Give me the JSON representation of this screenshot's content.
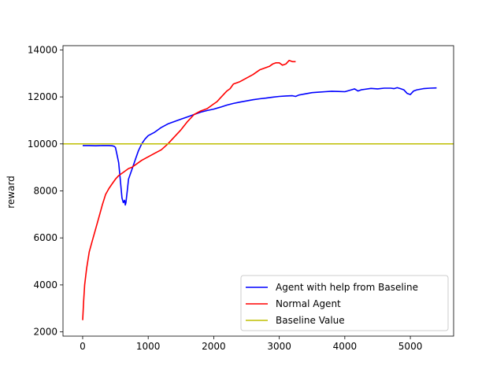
{
  "chart_data": {
    "type": "line",
    "title": "",
    "xlabel": "",
    "ylabel": "reward",
    "xlim": [
      -300,
      5660
    ],
    "ylim": [
      1820,
      14180
    ],
    "x_ticks": [
      0,
      1000,
      2000,
      3000,
      4000,
      5000
    ],
    "y_ticks": [
      2000,
      4000,
      6000,
      8000,
      10000,
      12000,
      14000
    ],
    "grid": false,
    "legend_position": "lower-right",
    "series": [
      {
        "name": "Agent with help from Baseline",
        "color": "#0000ff",
        "x": [
          0,
          100,
          200,
          300,
          400,
          450,
          480,
          500,
          520,
          550,
          570,
          600,
          620,
          640,
          650,
          660,
          680,
          700,
          750,
          800,
          850,
          900,
          950,
          1000,
          1100,
          1200,
          1300,
          1400,
          1500,
          1600,
          1700,
          1800,
          1900,
          2000,
          2100,
          2200,
          2300,
          2400,
          2500,
          2600,
          2700,
          2800,
          2900,
          3000,
          3100,
          3200,
          3250,
          3300,
          3400,
          3500,
          3600,
          3700,
          3800,
          3900,
          4000,
          4100,
          4150,
          4200,
          4250,
          4300,
          4400,
          4500,
          4600,
          4700,
          4750,
          4800,
          4850,
          4900,
          4950,
          5000,
          5050,
          5100,
          5200,
          5300,
          5400
        ],
        "values": [
          9930,
          9930,
          9920,
          9930,
          9930,
          9920,
          9900,
          9850,
          9600,
          9200,
          8600,
          7700,
          7500,
          7600,
          7400,
          7500,
          8000,
          8500,
          8900,
          9300,
          9700,
          10000,
          10200,
          10350,
          10500,
          10700,
          10850,
          10950,
          11050,
          11150,
          11250,
          11350,
          11420,
          11480,
          11560,
          11650,
          11720,
          11780,
          11830,
          11880,
          11920,
          11950,
          11990,
          12020,
          12040,
          12050,
          12020,
          12080,
          12130,
          12180,
          12200,
          12220,
          12240,
          12230,
          12220,
          12300,
          12340,
          12250,
          12300,
          12320,
          12360,
          12340,
          12370,
          12370,
          12350,
          12390,
          12350,
          12300,
          12150,
          12100,
          12250,
          12300,
          12350,
          12370,
          12380
        ]
      },
      {
        "name": "Normal Agent",
        "color": "#ff0000",
        "x": [
          0,
          15,
          30,
          60,
          100,
          150,
          200,
          250,
          300,
          350,
          400,
          450,
          500,
          550,
          600,
          650,
          700,
          750,
          800,
          900,
          1000,
          1100,
          1200,
          1300,
          1400,
          1500,
          1600,
          1700,
          1800,
          1900,
          2000,
          2050,
          2100,
          2150,
          2200,
          2250,
          2300,
          2400,
          2500,
          2600,
          2700,
          2800,
          2850,
          2900,
          2950,
          3000,
          3050,
          3100,
          3150,
          3200,
          3250
        ],
        "values": [
          2500,
          3300,
          4000,
          4700,
          5400,
          5900,
          6400,
          6900,
          7400,
          7850,
          8100,
          8300,
          8500,
          8650,
          8750,
          8850,
          8950,
          9000,
          9100,
          9300,
          9450,
          9600,
          9750,
          10000,
          10300,
          10600,
          10950,
          11250,
          11400,
          11500,
          11700,
          11800,
          11950,
          12100,
          12250,
          12350,
          12550,
          12650,
          12800,
          12950,
          13150,
          13250,
          13300,
          13400,
          13450,
          13450,
          13350,
          13400,
          13550,
          13500,
          13500
        ]
      },
      {
        "name": "Baseline Value",
        "color": "#bfbf00",
        "constant": 10000
      }
    ]
  }
}
